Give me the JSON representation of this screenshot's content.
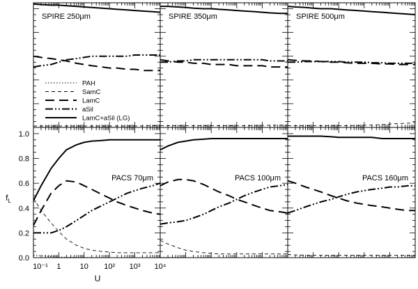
{
  "figure": {
    "ylabel": "f",
    "ylabel_sub": "L",
    "xlabel": "U"
  },
  "chart_data": {
    "type": "line",
    "xscale": "log",
    "xlim_top": [
      0.1,
      10000
    ],
    "ylim": [
      0,
      1.05
    ],
    "y_ticks": [
      "0.0",
      "0.2",
      "0.4",
      "0.6",
      "0.8",
      "1.0"
    ],
    "x_ticks": [
      "10⁻¹",
      "1",
      "10",
      "10²",
      "10³",
      "10⁴"
    ],
    "x_tick_values": [
      0.1,
      1,
      10,
      100,
      1000,
      10000
    ],
    "legend": [
      {
        "name": "PAH",
        "style": "dotted"
      },
      {
        "name": "SamC",
        "style": "dash-thin"
      },
      {
        "name": "LamC",
        "style": "dash-thick"
      },
      {
        "name": "aSil",
        "style": "dash-dot-dot"
      },
      {
        "name": "LamC+aSil (LG)",
        "style": "solid"
      }
    ],
    "x": [
      0.1,
      0.2,
      0.5,
      1,
      2,
      5,
      10,
      20,
      50,
      100,
      200,
      500,
      1000,
      2000,
      5000,
      10000
    ],
    "panels": [
      {
        "label": "SPIRE 250μm",
        "series": {
          "PAH": [
            0,
            0,
            0,
            0,
            0,
            0,
            0,
            0,
            0,
            0,
            0,
            0,
            0,
            0,
            0,
            0
          ],
          "SamC": [
            0.012,
            0.012,
            0.012,
            0.012,
            0.012,
            0.012,
            0.012,
            0.012,
            0.012,
            0.012,
            0.012,
            0.012,
            0.012,
            0.013,
            0.014,
            0.015
          ],
          "LamC": [
            0.6,
            0.59,
            0.58,
            0.57,
            0.56,
            0.54,
            0.53,
            0.52,
            0.51,
            0.5,
            0.5,
            0.49,
            0.49,
            0.48,
            0.48,
            0.48
          ],
          "aSil": [
            0.51,
            0.52,
            0.53,
            0.55,
            0.57,
            0.58,
            0.59,
            0.6,
            0.6,
            0.6,
            0.6,
            0.6,
            0.61,
            0.61,
            0.61,
            0.61
          ],
          "LamC+aSil (LG)": [
            1.04,
            1.035,
            1.03,
            1.03,
            1.025,
            1.02,
            1.015,
            1.01,
            1.005,
            1.0,
            0.995,
            0.99,
            0.985,
            0.98,
            0.975,
            0.97
          ]
        }
      },
      {
        "label": "SPIRE 350μm",
        "series": {
          "PAH": [
            0,
            0,
            0,
            0,
            0,
            0,
            0,
            0,
            0,
            0,
            0,
            0,
            0,
            0,
            0,
            0
          ],
          "SamC": [
            0.015,
            0.015,
            0.015,
            0.015,
            0.015,
            0.015,
            0.015,
            0.015,
            0.015,
            0.015,
            0.015,
            0.016,
            0.017,
            0.018,
            0.019,
            0.02
          ],
          "LamC": [
            0.57,
            0.56,
            0.55,
            0.55,
            0.54,
            0.54,
            0.53,
            0.53,
            0.53,
            0.52,
            0.52,
            0.52,
            0.52,
            0.51,
            0.51,
            0.51
          ],
          "aSil": [
            0.55,
            0.55,
            0.56,
            0.56,
            0.57,
            0.57,
            0.57,
            0.57,
            0.57,
            0.57,
            0.57,
            0.57,
            0.57,
            0.56,
            0.56,
            0.56
          ],
          "LamC+aSil (LG)": [
            1.02,
            1.02,
            1.015,
            1.01,
            1.005,
            1.0,
            1.0,
            0.995,
            0.99,
            0.985,
            0.98,
            0.975,
            0.97,
            0.965,
            0.96,
            0.96
          ]
        }
      },
      {
        "label": "SPIRE 500μm",
        "series": {
          "PAH": [
            0,
            0,
            0,
            0,
            0,
            0,
            0,
            0,
            0,
            0,
            0,
            0,
            0,
            0,
            0,
            0
          ],
          "SamC": [
            0.015,
            0.015,
            0.015,
            0.015,
            0.015,
            0.015,
            0.015,
            0.015,
            0.016,
            0.018,
            0.02,
            0.024,
            0.028,
            0.032,
            0.036,
            0.04
          ],
          "LamC": [
            0.57,
            0.565,
            0.56,
            0.56,
            0.555,
            0.55,
            0.55,
            0.545,
            0.54,
            0.54,
            0.54,
            0.535,
            0.535,
            0.53,
            0.53,
            0.53
          ],
          "aSil": [
            0.55,
            0.55,
            0.555,
            0.555,
            0.555,
            0.555,
            0.555,
            0.55,
            0.55,
            0.55,
            0.545,
            0.545,
            0.54,
            0.54,
            0.54,
            0.54
          ],
          "LamC+aSil (LG)": [
            1.02,
            1.015,
            1.01,
            1.005,
            1.0,
            1.0,
            0.995,
            0.99,
            0.985,
            0.98,
            0.975,
            0.97,
            0.965,
            0.96,
            0.955,
            0.95
          ]
        }
      },
      {
        "label": "PACS 70μm",
        "series": {
          "PAH": [
            0.02,
            0.015,
            0.009,
            0.005,
            0.003,
            0.002,
            0.001,
            0.001,
            0,
            0,
            0,
            0,
            0,
            0,
            0,
            0
          ],
          "SamC": [
            0.48,
            0.38,
            0.28,
            0.21,
            0.15,
            0.1,
            0.075,
            0.06,
            0.05,
            0.045,
            0.04,
            0.04,
            0.04,
            0.04,
            0.04,
            0.04
          ],
          "LamC": [
            0.26,
            0.38,
            0.52,
            0.58,
            0.62,
            0.61,
            0.58,
            0.55,
            0.51,
            0.48,
            0.45,
            0.42,
            0.4,
            0.38,
            0.36,
            0.35
          ],
          "aSil": [
            0.2,
            0.2,
            0.2,
            0.22,
            0.25,
            0.3,
            0.34,
            0.38,
            0.42,
            0.45,
            0.48,
            0.52,
            0.54,
            0.56,
            0.58,
            0.6
          ],
          "LamC+aSil (LG)": [
            0.46,
            0.58,
            0.72,
            0.8,
            0.87,
            0.91,
            0.93,
            0.94,
            0.945,
            0.95,
            0.95,
            0.95,
            0.95,
            0.95,
            0.95,
            0.95
          ]
        }
      },
      {
        "label": "PACS 100μm",
        "series": {
          "PAH": [
            0.003,
            0.002,
            0.001,
            0.001,
            0,
            0,
            0,
            0,
            0,
            0,
            0,
            0,
            0,
            0,
            0,
            0
          ],
          "SamC": [
            0.14,
            0.11,
            0.08,
            0.06,
            0.05,
            0.04,
            0.035,
            0.03,
            0.03,
            0.03,
            0.03,
            0.03,
            0.03,
            0.03,
            0.03,
            0.03
          ],
          "LamC": [
            0.58,
            0.61,
            0.63,
            0.63,
            0.62,
            0.59,
            0.56,
            0.53,
            0.5,
            0.47,
            0.45,
            0.42,
            0.4,
            0.38,
            0.37,
            0.36
          ],
          "aSil": [
            0.27,
            0.28,
            0.29,
            0.3,
            0.32,
            0.35,
            0.38,
            0.41,
            0.44,
            0.47,
            0.5,
            0.53,
            0.55,
            0.57,
            0.58,
            0.59
          ],
          "LamC+aSil (LG)": [
            0.87,
            0.9,
            0.93,
            0.94,
            0.95,
            0.955,
            0.96,
            0.96,
            0.96,
            0.96,
            0.96,
            0.96,
            0.96,
            0.96,
            0.96,
            0.96
          ]
        }
      },
      {
        "label": "PACS 160μm",
        "series": {
          "PAH": [
            0,
            0,
            0,
            0,
            0,
            0,
            0,
            0,
            0,
            0,
            0,
            0,
            0,
            0,
            0,
            0
          ],
          "SamC": [
            0.025,
            0.022,
            0.02,
            0.02,
            0.02,
            0.02,
            0.02,
            0.02,
            0.02,
            0.02,
            0.02,
            0.02,
            0.02,
            0.02,
            0.02,
            0.02
          ],
          "LamC": [
            0.62,
            0.6,
            0.57,
            0.55,
            0.53,
            0.5,
            0.48,
            0.46,
            0.44,
            0.43,
            0.42,
            0.41,
            0.4,
            0.39,
            0.38,
            0.38
          ],
          "aSil": [
            0.36,
            0.38,
            0.41,
            0.43,
            0.45,
            0.47,
            0.49,
            0.51,
            0.53,
            0.54,
            0.55,
            0.56,
            0.57,
            0.57,
            0.58,
            0.58
          ],
          "LamC+aSil (LG)": [
            0.98,
            0.98,
            0.98,
            0.98,
            0.98,
            0.975,
            0.97,
            0.97,
            0.97,
            0.97,
            0.97,
            0.96,
            0.96,
            0.96,
            0.96,
            0.96
          ]
        }
      }
    ]
  }
}
